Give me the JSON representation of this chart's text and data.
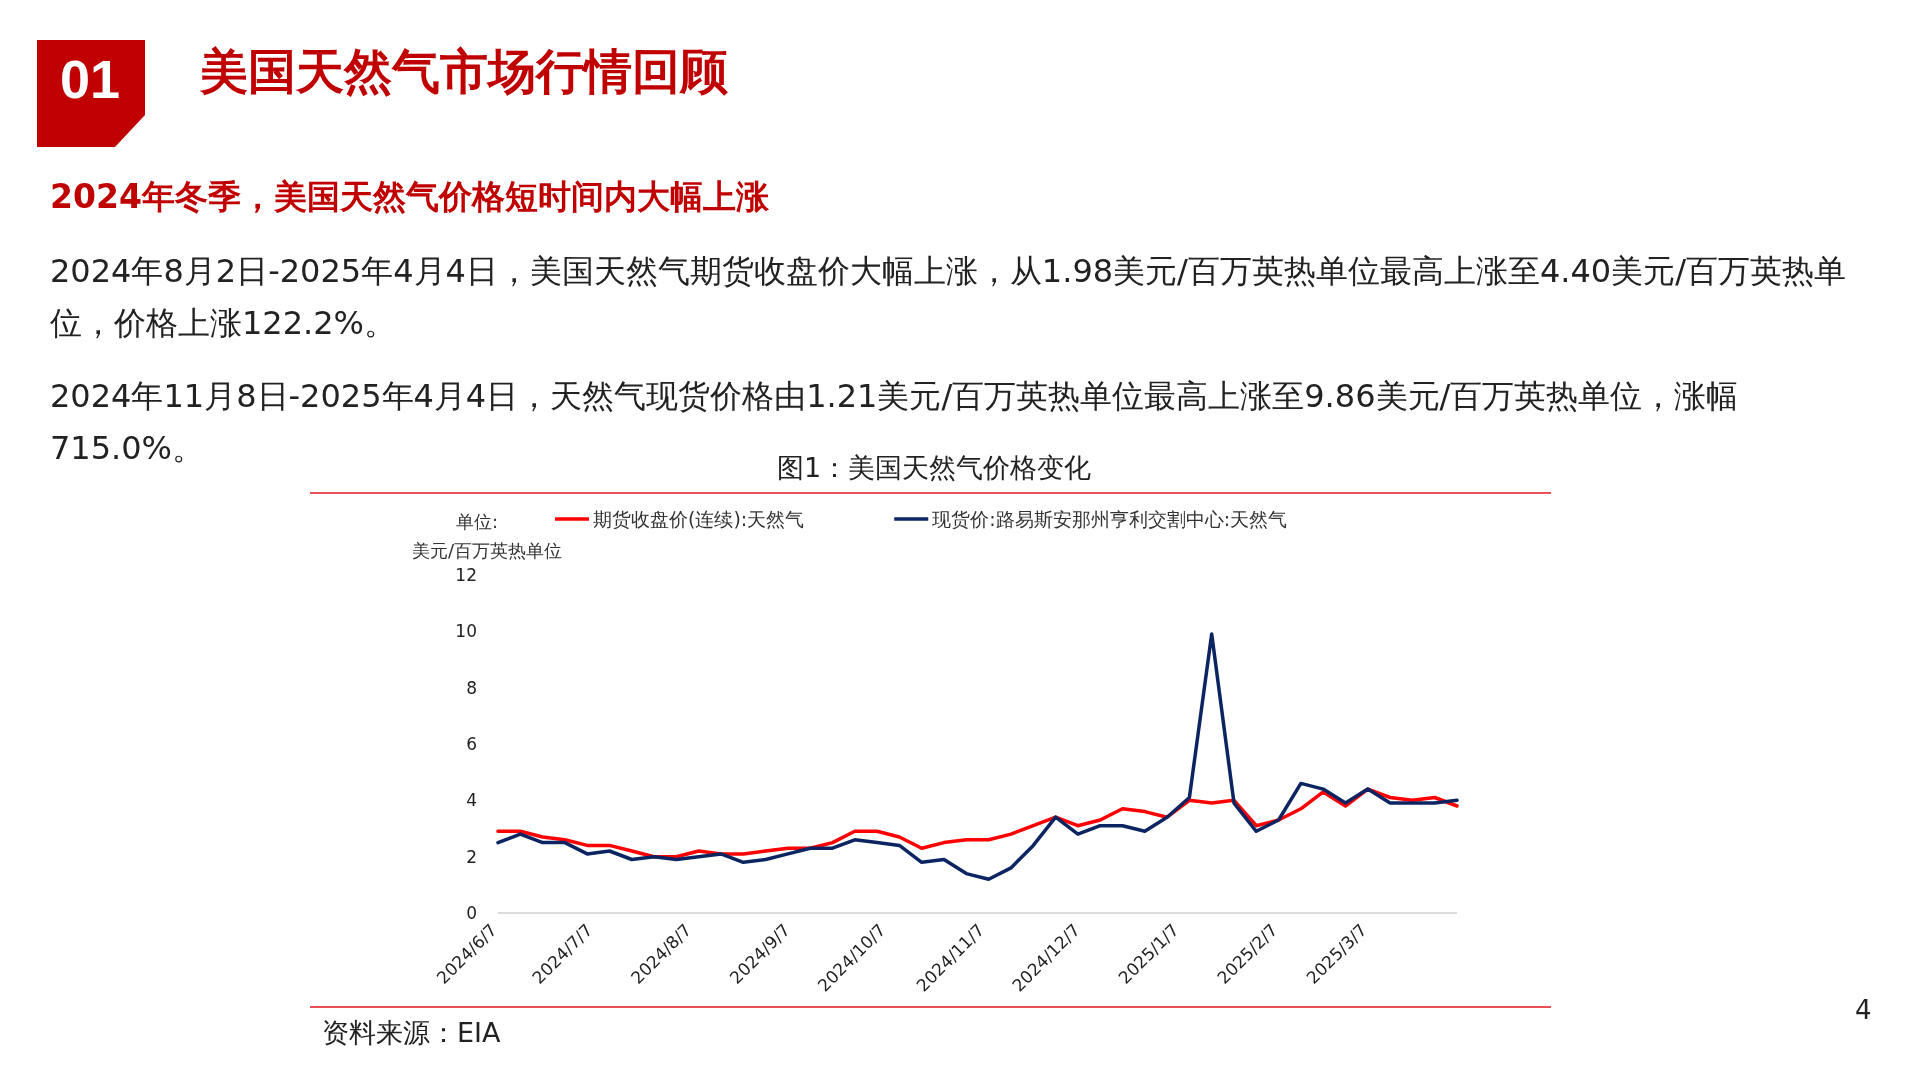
{
  "chart_data": {
    "type": "line",
    "title": "美国天然气市场行情回顾",
    "subtitle": "2024年冬季，美国天然气价格短时间内大幅上涨",
    "annotations": [
      "01",
      "2024年8月2日-2025年4月4日，美国天然气期货收盘价大幅上涨，从1.98美元/百万英热单位最高上涨至4.40美元/百万英热单位，价格上涨122.2%。",
      "2024年11月8日-2025年4月4日，天然气现货价格由1.21美元/百万英热单位最高上涨至9.86美元/百万英热单位，涨幅715.0%。",
      "图1：美国天然气价格变化",
      "资料来源：EIA",
      "4"
    ],
    "ylabel": "单位:\n美元/百万英热单位",
    "x": [
      "2024-06-07",
      "2024-06-14",
      "2024-06-21",
      "2024-06-28",
      "2024-07-05",
      "2024-07-12",
      "2024-07-19",
      "2024-07-26",
      "2024-08-02",
      "2024-08-09",
      "2024-08-16",
      "2024-08-23",
      "2024-08-30",
      "2024-09-06",
      "2024-09-13",
      "2024-09-20",
      "2024-09-27",
      "2024-10-04",
      "2024-10-11",
      "2024-10-18",
      "2024-10-25",
      "2024-11-01",
      "2024-11-08",
      "2024-11-15",
      "2024-11-22",
      "2024-11-29",
      "2024-12-06",
      "2024-12-13",
      "2024-12-20",
      "2024-12-27",
      "2025-01-03",
      "2025-01-10",
      "2025-01-17",
      "2025-01-24",
      "2025-01-31",
      "2025-02-07",
      "2025-02-14",
      "2025-02-21",
      "2025-02-28",
      "2025-03-07",
      "2025-03-14",
      "2025-03-21",
      "2025-03-28",
      "2025-04-04"
    ],
    "series": [
      {
        "name": "期货收盘价(连续):天然气",
        "color": "#ff0000",
        "values": [
          2.9,
          2.9,
          2.7,
          2.6,
          2.4,
          2.4,
          2.2,
          2.0,
          2.0,
          2.2,
          2.1,
          2.1,
          2.2,
          2.3,
          2.3,
          2.5,
          2.9,
          2.9,
          2.7,
          2.3,
          2.5,
          2.6,
          2.6,
          2.8,
          3.1,
          3.4,
          3.1,
          3.3,
          3.7,
          3.6,
          3.4,
          4.0,
          3.9,
          4.0,
          3.1,
          3.3,
          3.7,
          4.3,
          3.8,
          4.4,
          4.1,
          4.0,
          4.1,
          3.8
        ]
      },
      {
        "name": "现货价:路易斯安那州亨利交割中心:天然气",
        "color": "#0c2461",
        "values": [
          2.5,
          2.8,
          2.5,
          2.5,
          2.1,
          2.2,
          1.9,
          2.0,
          1.9,
          2.0,
          2.1,
          1.8,
          1.9,
          2.1,
          2.3,
          2.3,
          2.6,
          2.5,
          2.4,
          1.8,
          1.9,
          1.4,
          1.2,
          1.6,
          2.4,
          3.4,
          2.8,
          3.1,
          3.1,
          2.9,
          3.4,
          4.1,
          9.9,
          3.9,
          2.9,
          3.3,
          4.6,
          4.4,
          3.9,
          4.4,
          3.9,
          3.9,
          3.9,
          4.0
        ]
      }
    ],
    "xlim": [
      "2024-06-07",
      "2025-04-04"
    ],
    "xticks": [
      {
        "value": "2024-06-07",
        "label": "2024/6/7"
      },
      {
        "value": "2024-07-07",
        "label": "2024/7/7"
      },
      {
        "value": "2024-08-07",
        "label": "2024/8/7"
      },
      {
        "value": "2024-09-07",
        "label": "2024/9/7"
      },
      {
        "value": "2024-10-07",
        "label": "2024/10/7"
      },
      {
        "value": "2024-11-07",
        "label": "2024/11/7"
      },
      {
        "value": "2024-12-07",
        "label": "2024/12/7"
      },
      {
        "value": "2025-01-07",
        "label": "2025/1/7"
      },
      {
        "value": "2025-02-07",
        "label": "2025/2/7"
      },
      {
        "value": "2025-03-07",
        "label": "2025/3/7"
      }
    ],
    "ylim": [
      0,
      12
    ],
    "yticks": [
      0,
      2,
      4,
      6,
      8,
      10,
      12
    ],
    "legend": "top",
    "grid": false,
    "marker": "none",
    "line_style": "solid"
  }
}
